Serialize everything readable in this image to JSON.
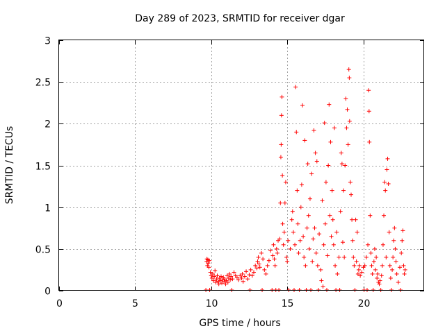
{
  "chart_data": {
    "type": "scatter",
    "title": "Day 289 of 2023, SRMTID for receiver dgar",
    "xlabel": "GPS time / hours",
    "ylabel": "SRMTID / TECUs",
    "xlim": [
      0,
      24
    ],
    "ylim": [
      0,
      3
    ],
    "xticks": [
      0,
      5,
      10,
      15,
      20
    ],
    "yticks": [
      0,
      0.5,
      1,
      1.5,
      2,
      2.5,
      3
    ],
    "xtick_labels": [
      "0",
      "5",
      "10",
      "15",
      "20"
    ],
    "ytick_labels": [
      "0",
      "0.5",
      "1",
      "1.5",
      "2",
      "2.5",
      "3"
    ],
    "grid": true,
    "marker": "+",
    "color": "#ff0000",
    "series": [
      {
        "name": "SRMTID",
        "points": [
          [
            9.65,
            0.0
          ],
          [
            9.7,
            0.35
          ],
          [
            9.72,
            0.38
          ],
          [
            9.75,
            0.3
          ],
          [
            9.78,
            0.37
          ],
          [
            9.8,
            0.33
          ],
          [
            9.85,
            0.28
          ],
          [
            9.88,
            0.36
          ],
          [
            9.9,
            0.0
          ],
          [
            9.95,
            0.22
          ],
          [
            10.0,
            0.18
          ],
          [
            10.05,
            0.15
          ],
          [
            10.1,
            0.2
          ],
          [
            10.15,
            0.12
          ],
          [
            10.2,
            0.17
          ],
          [
            10.25,
            0.24
          ],
          [
            10.3,
            0.1
          ],
          [
            10.35,
            0.14
          ],
          [
            10.4,
            0.18
          ],
          [
            10.45,
            0.11
          ],
          [
            10.5,
            0.08
          ],
          [
            10.55,
            0.15
          ],
          [
            10.6,
            0.12
          ],
          [
            10.65,
            0.17
          ],
          [
            10.7,
            0.09
          ],
          [
            10.75,
            0.13
          ],
          [
            10.8,
            0.16
          ],
          [
            10.85,
            0.11
          ],
          [
            10.9,
            0.14
          ],
          [
            10.95,
            0.08
          ],
          [
            11.0,
            0.12
          ],
          [
            11.05,
            0.18
          ],
          [
            11.1,
            0.1
          ],
          [
            11.15,
            0.15
          ],
          [
            11.2,
            0.2
          ],
          [
            11.25,
            0.13
          ],
          [
            11.3,
            0.17
          ],
          [
            11.35,
            0.0
          ],
          [
            11.4,
            0.14
          ],
          [
            11.5,
            0.22
          ],
          [
            11.6,
            0.18
          ],
          [
            11.7,
            0.16
          ],
          [
            11.8,
            0.13
          ],
          [
            11.9,
            0.18
          ],
          [
            12.0,
            0.15
          ],
          [
            12.05,
            0.2
          ],
          [
            12.1,
            0.11
          ],
          [
            12.2,
            0.17
          ],
          [
            12.3,
            0.23
          ],
          [
            12.4,
            0.14
          ],
          [
            12.5,
            0.19
          ],
          [
            12.55,
            0.0
          ],
          [
            12.6,
            0.25
          ],
          [
            12.7,
            0.18
          ],
          [
            12.8,
            0.22
          ],
          [
            12.9,
            0.3
          ],
          [
            13.0,
            0.27
          ],
          [
            13.05,
            0.35
          ],
          [
            13.1,
            0.4
          ],
          [
            13.15,
            0.32
          ],
          [
            13.2,
            0.28
          ],
          [
            13.3,
            0.45
          ],
          [
            13.35,
            0.0
          ],
          [
            13.4,
            0.38
          ],
          [
            13.5,
            0.25
          ],
          [
            13.6,
            0.2
          ],
          [
            13.7,
            0.3
          ],
          [
            13.8,
            0.36
          ],
          [
            13.9,
            0.48
          ],
          [
            14.0,
            0.0
          ],
          [
            14.05,
            0.42
          ],
          [
            14.1,
            0.55
          ],
          [
            14.15,
            0.38
          ],
          [
            14.2,
            0.3
          ],
          [
            14.25,
            0.0
          ],
          [
            14.3,
            0.5
          ],
          [
            14.35,
            0.45
          ],
          [
            14.4,
            0.6
          ],
          [
            14.45,
            0.0
          ],
          [
            14.5,
            0.62
          ],
          [
            14.55,
            1.05
          ],
          [
            14.58,
            1.6
          ],
          [
            14.6,
            1.75
          ],
          [
            14.62,
            2.1
          ],
          [
            14.65,
            2.32
          ],
          [
            14.68,
            1.38
          ],
          [
            14.7,
            0.8
          ],
          [
            14.75,
            0.55
          ],
          [
            14.8,
            0.7
          ],
          [
            14.85,
            1.05
          ],
          [
            14.9,
            1.3
          ],
          [
            14.95,
            0.4
          ],
          [
            15.0,
            0.35
          ],
          [
            15.05,
            0.6
          ],
          [
            15.1,
            0.0
          ],
          [
            15.2,
            0.5
          ],
          [
            15.3,
            0.85
          ],
          [
            15.35,
            0.95
          ],
          [
            15.4,
            0.7
          ],
          [
            15.45,
            0.0
          ],
          [
            15.5,
            0.55
          ],
          [
            15.55,
            2.44
          ],
          [
            15.6,
            1.9
          ],
          [
            15.65,
            1.2
          ],
          [
            15.7,
            0.8
          ],
          [
            15.75,
            0.45
          ],
          [
            15.8,
            0.0
          ],
          [
            15.85,
            0.6
          ],
          [
            15.9,
            1.0
          ],
          [
            15.95,
            1.27
          ],
          [
            16.0,
            2.22
          ],
          [
            16.05,
            0.65
          ],
          [
            16.1,
            0.4
          ],
          [
            16.15,
            1.8
          ],
          [
            16.2,
            0.3
          ],
          [
            16.25,
            0.0
          ],
          [
            16.3,
            0.75
          ],
          [
            16.35,
            1.52
          ],
          [
            16.4,
            0.9
          ],
          [
            16.45,
            0.5
          ],
          [
            16.5,
            1.1
          ],
          [
            16.55,
            0.0
          ],
          [
            16.6,
            1.4
          ],
          [
            16.65,
            0.35
          ],
          [
            16.7,
            0.62
          ],
          [
            16.75,
            1.92
          ],
          [
            16.8,
            0.75
          ],
          [
            16.85,
            1.65
          ],
          [
            16.9,
            0.45
          ],
          [
            16.95,
            1.55
          ],
          [
            17.0,
            0.3
          ],
          [
            17.05,
            0.0
          ],
          [
            17.1,
            0.68
          ],
          [
            17.2,
            0.25
          ],
          [
            17.25,
            0.12
          ],
          [
            17.3,
            1.08
          ],
          [
            17.35,
            0.05
          ],
          [
            17.4,
            0.55
          ],
          [
            17.45,
            2.01
          ],
          [
            17.5,
            0.8
          ],
          [
            17.55,
            1.3
          ],
          [
            17.6,
            0.0
          ],
          [
            17.65,
            0.42
          ],
          [
            17.7,
            1.5
          ],
          [
            17.75,
            2.23
          ],
          [
            17.8,
            0.9
          ],
          [
            17.85,
            1.78
          ],
          [
            17.9,
            0.65
          ],
          [
            17.95,
            1.2
          ],
          [
            18.0,
            0.85
          ],
          [
            18.05,
            0.55
          ],
          [
            18.1,
            1.95
          ],
          [
            18.15,
            0.3
          ],
          [
            18.2,
            0.0
          ],
          [
            18.25,
            0.7
          ],
          [
            18.3,
            0.2
          ],
          [
            18.4,
            0.4
          ],
          [
            18.45,
            0.0
          ],
          [
            18.5,
            0.95
          ],
          [
            18.55,
            1.65
          ],
          [
            18.6,
            1.52
          ],
          [
            18.65,
            0.58
          ],
          [
            18.7,
            1.2
          ],
          [
            18.75,
            0.4
          ],
          [
            18.8,
            1.5
          ],
          [
            18.85,
            2.3
          ],
          [
            18.9,
            1.95
          ],
          [
            18.95,
            2.17
          ],
          [
            19.0,
            1.75
          ],
          [
            19.05,
            2.65
          ],
          [
            19.08,
            2.55
          ],
          [
            19.1,
            2.03
          ],
          [
            19.15,
            1.3
          ],
          [
            19.2,
            1.15
          ],
          [
            19.25,
            0.85
          ],
          [
            19.3,
            0.6
          ],
          [
            19.35,
            0.4
          ],
          [
            19.4,
            0.3
          ],
          [
            19.45,
            0.0
          ],
          [
            19.5,
            0.85
          ],
          [
            19.55,
            0.35
          ],
          [
            19.6,
            0.7
          ],
          [
            19.65,
            0.2
          ],
          [
            19.7,
            0.25
          ],
          [
            19.75,
            0.3
          ],
          [
            19.8,
            0.18
          ],
          [
            19.9,
            0.22
          ],
          [
            20.0,
            0.28
          ],
          [
            20.05,
            0.0
          ],
          [
            20.1,
            0.3
          ],
          [
            20.2,
            0.4
          ],
          [
            20.25,
            0.0
          ],
          [
            20.3,
            0.55
          ],
          [
            20.35,
            2.4
          ],
          [
            20.38,
            2.15
          ],
          [
            20.4,
            1.78
          ],
          [
            20.45,
            0.9
          ],
          [
            20.5,
            0.45
          ],
          [
            20.55,
            0.3
          ],
          [
            20.6,
            0.2
          ],
          [
            20.65,
            0.0
          ],
          [
            20.7,
            0.35
          ],
          [
            20.75,
            0.5
          ],
          [
            20.8,
            0.25
          ],
          [
            20.85,
            0.4
          ],
          [
            20.9,
            0.15
          ],
          [
            20.95,
            0.2
          ],
          [
            21.0,
            0.1
          ],
          [
            21.05,
            0.08
          ],
          [
            21.1,
            0.12
          ],
          [
            21.15,
            0.0
          ],
          [
            21.2,
            0.18
          ],
          [
            21.25,
            0.3
          ],
          [
            21.3,
            0.55
          ],
          [
            21.35,
            0.9
          ],
          [
            21.4,
            1.3
          ],
          [
            21.45,
            1.2
          ],
          [
            21.5,
            0.4
          ],
          [
            21.55,
            1.45
          ],
          [
            21.6,
            1.58
          ],
          [
            21.65,
            1.28
          ],
          [
            21.7,
            0.7
          ],
          [
            21.75,
            0.3
          ],
          [
            21.8,
            0.15
          ],
          [
            21.85,
            0.0
          ],
          [
            21.9,
            0.25
          ],
          [
            21.95,
            0.4
          ],
          [
            22.0,
            0.6
          ],
          [
            22.05,
            0.75
          ],
          [
            22.1,
            0.5
          ],
          [
            22.15,
            0.35
          ],
          [
            22.2,
            0.2
          ],
          [
            22.3,
            0.1
          ],
          [
            22.4,
            0.28
          ],
          [
            22.45,
            0.0
          ],
          [
            22.5,
            0.45
          ],
          [
            22.55,
            0.6
          ],
          [
            22.6,
            0.72
          ],
          [
            22.65,
            0.3
          ],
          [
            22.7,
            0.2
          ],
          [
            22.75,
            0.25
          ]
        ]
      }
    ]
  }
}
